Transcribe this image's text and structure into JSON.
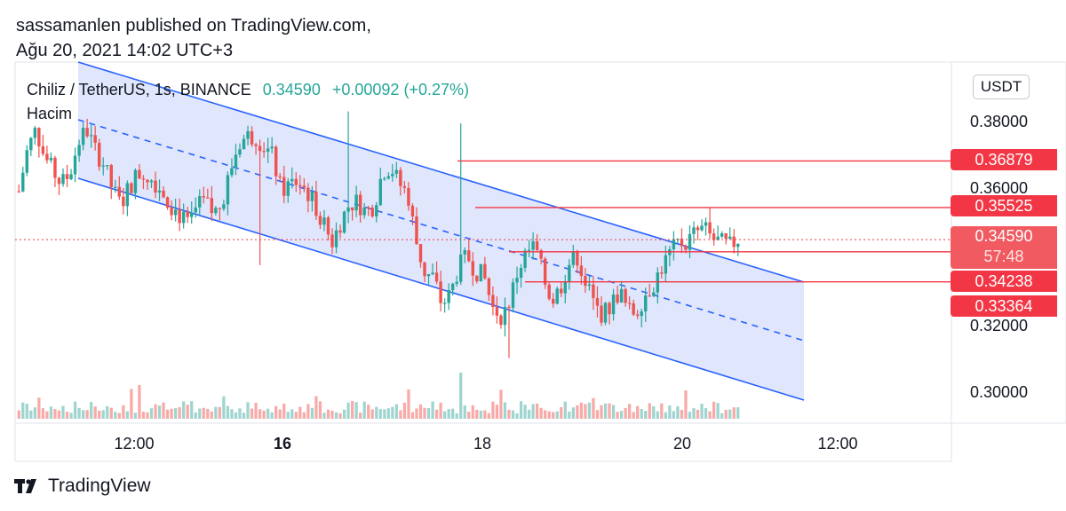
{
  "header": {
    "published": "sassamanlen published on TradingView.com,",
    "date": "Ağu 20, 2021 14:02 UTC+3"
  },
  "legend": {
    "symbol": "Chiliz / TetherUS, 1s, BINANCE",
    "price": "0.34590",
    "change": "+0.00092 (+0.27%)",
    "volume_label": "Hacim"
  },
  "currency": "USDT",
  "brand": "TradingView",
  "colors": {
    "up": "#26a69a",
    "down": "#ef5350",
    "channel": "#2962ff",
    "channel_fill": "#dbe2fb",
    "tag": "#f23645",
    "vol_up": "#9fd5cf",
    "vol_down": "#f7aaa8"
  },
  "chart_data": {
    "type": "candlestick",
    "y_axis": {
      "ticks": [
        "0.38000",
        "0.36000",
        "0.32000",
        "0.30000"
      ],
      "range": [
        0.293,
        0.389
      ]
    },
    "x_axis": {
      "ticks": [
        {
          "label": "12:00",
          "bold": false
        },
        {
          "label": "16",
          "bold": true
        },
        {
          "label": "18",
          "bold": false
        },
        {
          "label": "20",
          "bold": false
        },
        {
          "label": "12:00",
          "bold": false
        }
      ]
    },
    "current_price": {
      "value": 0.3459,
      "label": "0.34590",
      "countdown": "57:48"
    },
    "levels": [
      {
        "value": 0.36879,
        "label": "0.36879"
      },
      {
        "value": 0.35525,
        "label": "0.35525"
      },
      {
        "value": 0.34238,
        "label": "0.34238"
      },
      {
        "value": 0.33364,
        "label": "0.33364"
      }
    ],
    "channel": {
      "type": "parallel-channel",
      "trend": "down"
    },
    "price_path": [
      0.36,
      0.372,
      0.378,
      0.37,
      0.366,
      0.362,
      0.365,
      0.374,
      0.378,
      0.372,
      0.368,
      0.361,
      0.356,
      0.361,
      0.365,
      0.365,
      0.363,
      0.36,
      0.356,
      0.353,
      0.35,
      0.355,
      0.357,
      0.353,
      0.357,
      0.366,
      0.374,
      0.376,
      0.376,
      0.373,
      0.37,
      0.36,
      0.362,
      0.363,
      0.36,
      0.356,
      0.351,
      0.345,
      0.351,
      0.356,
      0.357,
      0.354,
      0.356,
      0.366,
      0.367,
      0.362,
      0.359,
      0.345,
      0.336,
      0.335,
      0.327,
      0.33,
      0.338,
      0.341,
      0.337,
      0.335,
      0.326,
      0.324,
      0.328,
      0.337,
      0.342,
      0.344,
      0.335,
      0.328,
      0.332,
      0.339,
      0.341,
      0.333,
      0.327,
      0.324,
      0.327,
      0.331,
      0.325,
      0.325,
      0.33,
      0.333,
      0.338,
      0.342,
      0.345,
      0.345,
      0.348,
      0.349,
      0.346,
      0.345,
      0.344,
      0.346
    ]
  }
}
